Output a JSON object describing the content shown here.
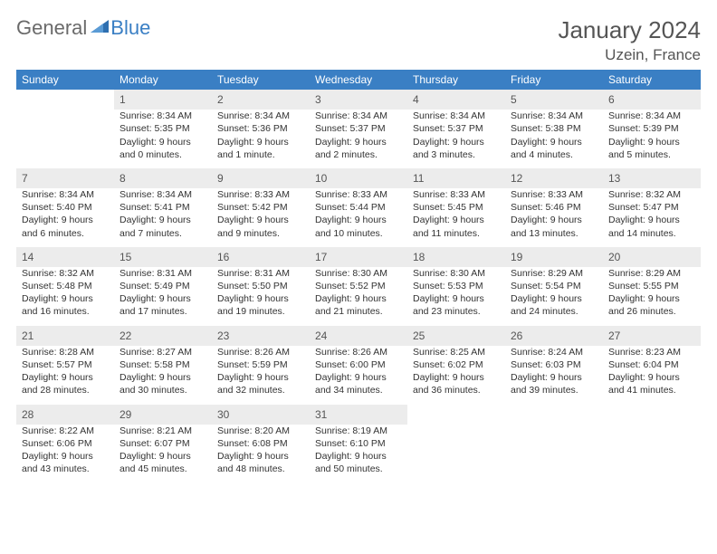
{
  "brand": {
    "part1": "General",
    "part2": "Blue"
  },
  "title": {
    "month": "January 2024",
    "location": "Uzein, France"
  },
  "colors": {
    "header_bg": "#3a7fc4",
    "header_text": "#ffffff",
    "daynum_bg": "#ececec",
    "row_border": "#3a7fc4",
    "body_text": "#333333",
    "title_text": "#555555"
  },
  "typography": {
    "month_fontsize": 26,
    "location_fontsize": 17,
    "dow_fontsize": 12,
    "daynum_fontsize": 12,
    "cell_fontsize": 10.5
  },
  "days_of_week": [
    "Sunday",
    "Monday",
    "Tuesday",
    "Wednesday",
    "Thursday",
    "Friday",
    "Saturday"
  ],
  "weeks": [
    {
      "nums": [
        "",
        "1",
        "2",
        "3",
        "4",
        "5",
        "6"
      ],
      "cells": [
        {
          "empty": true
        },
        {
          "sunrise": "Sunrise: 8:34 AM",
          "sunset": "Sunset: 5:35 PM",
          "day1": "Daylight: 9 hours",
          "day2": "and 0 minutes."
        },
        {
          "sunrise": "Sunrise: 8:34 AM",
          "sunset": "Sunset: 5:36 PM",
          "day1": "Daylight: 9 hours",
          "day2": "and 1 minute."
        },
        {
          "sunrise": "Sunrise: 8:34 AM",
          "sunset": "Sunset: 5:37 PM",
          "day1": "Daylight: 9 hours",
          "day2": "and 2 minutes."
        },
        {
          "sunrise": "Sunrise: 8:34 AM",
          "sunset": "Sunset: 5:37 PM",
          "day1": "Daylight: 9 hours",
          "day2": "and 3 minutes."
        },
        {
          "sunrise": "Sunrise: 8:34 AM",
          "sunset": "Sunset: 5:38 PM",
          "day1": "Daylight: 9 hours",
          "day2": "and 4 minutes."
        },
        {
          "sunrise": "Sunrise: 8:34 AM",
          "sunset": "Sunset: 5:39 PM",
          "day1": "Daylight: 9 hours",
          "day2": "and 5 minutes."
        }
      ]
    },
    {
      "nums": [
        "7",
        "8",
        "9",
        "10",
        "11",
        "12",
        "13"
      ],
      "cells": [
        {
          "sunrise": "Sunrise: 8:34 AM",
          "sunset": "Sunset: 5:40 PM",
          "day1": "Daylight: 9 hours",
          "day2": "and 6 minutes."
        },
        {
          "sunrise": "Sunrise: 8:34 AM",
          "sunset": "Sunset: 5:41 PM",
          "day1": "Daylight: 9 hours",
          "day2": "and 7 minutes."
        },
        {
          "sunrise": "Sunrise: 8:33 AM",
          "sunset": "Sunset: 5:42 PM",
          "day1": "Daylight: 9 hours",
          "day2": "and 9 minutes."
        },
        {
          "sunrise": "Sunrise: 8:33 AM",
          "sunset": "Sunset: 5:44 PM",
          "day1": "Daylight: 9 hours",
          "day2": "and 10 minutes."
        },
        {
          "sunrise": "Sunrise: 8:33 AM",
          "sunset": "Sunset: 5:45 PM",
          "day1": "Daylight: 9 hours",
          "day2": "and 11 minutes."
        },
        {
          "sunrise": "Sunrise: 8:33 AM",
          "sunset": "Sunset: 5:46 PM",
          "day1": "Daylight: 9 hours",
          "day2": "and 13 minutes."
        },
        {
          "sunrise": "Sunrise: 8:32 AM",
          "sunset": "Sunset: 5:47 PM",
          "day1": "Daylight: 9 hours",
          "day2": "and 14 minutes."
        }
      ]
    },
    {
      "nums": [
        "14",
        "15",
        "16",
        "17",
        "18",
        "19",
        "20"
      ],
      "cells": [
        {
          "sunrise": "Sunrise: 8:32 AM",
          "sunset": "Sunset: 5:48 PM",
          "day1": "Daylight: 9 hours",
          "day2": "and 16 minutes."
        },
        {
          "sunrise": "Sunrise: 8:31 AM",
          "sunset": "Sunset: 5:49 PM",
          "day1": "Daylight: 9 hours",
          "day2": "and 17 minutes."
        },
        {
          "sunrise": "Sunrise: 8:31 AM",
          "sunset": "Sunset: 5:50 PM",
          "day1": "Daylight: 9 hours",
          "day2": "and 19 minutes."
        },
        {
          "sunrise": "Sunrise: 8:30 AM",
          "sunset": "Sunset: 5:52 PM",
          "day1": "Daylight: 9 hours",
          "day2": "and 21 minutes."
        },
        {
          "sunrise": "Sunrise: 8:30 AM",
          "sunset": "Sunset: 5:53 PM",
          "day1": "Daylight: 9 hours",
          "day2": "and 23 minutes."
        },
        {
          "sunrise": "Sunrise: 8:29 AM",
          "sunset": "Sunset: 5:54 PM",
          "day1": "Daylight: 9 hours",
          "day2": "and 24 minutes."
        },
        {
          "sunrise": "Sunrise: 8:29 AM",
          "sunset": "Sunset: 5:55 PM",
          "day1": "Daylight: 9 hours",
          "day2": "and 26 minutes."
        }
      ]
    },
    {
      "nums": [
        "21",
        "22",
        "23",
        "24",
        "25",
        "26",
        "27"
      ],
      "cells": [
        {
          "sunrise": "Sunrise: 8:28 AM",
          "sunset": "Sunset: 5:57 PM",
          "day1": "Daylight: 9 hours",
          "day2": "and 28 minutes."
        },
        {
          "sunrise": "Sunrise: 8:27 AM",
          "sunset": "Sunset: 5:58 PM",
          "day1": "Daylight: 9 hours",
          "day2": "and 30 minutes."
        },
        {
          "sunrise": "Sunrise: 8:26 AM",
          "sunset": "Sunset: 5:59 PM",
          "day1": "Daylight: 9 hours",
          "day2": "and 32 minutes."
        },
        {
          "sunrise": "Sunrise: 8:26 AM",
          "sunset": "Sunset: 6:00 PM",
          "day1": "Daylight: 9 hours",
          "day2": "and 34 minutes."
        },
        {
          "sunrise": "Sunrise: 8:25 AM",
          "sunset": "Sunset: 6:02 PM",
          "day1": "Daylight: 9 hours",
          "day2": "and 36 minutes."
        },
        {
          "sunrise": "Sunrise: 8:24 AM",
          "sunset": "Sunset: 6:03 PM",
          "day1": "Daylight: 9 hours",
          "day2": "and 39 minutes."
        },
        {
          "sunrise": "Sunrise: 8:23 AM",
          "sunset": "Sunset: 6:04 PM",
          "day1": "Daylight: 9 hours",
          "day2": "and 41 minutes."
        }
      ]
    },
    {
      "nums": [
        "28",
        "29",
        "30",
        "31",
        "",
        "",
        ""
      ],
      "cells": [
        {
          "sunrise": "Sunrise: 8:22 AM",
          "sunset": "Sunset: 6:06 PM",
          "day1": "Daylight: 9 hours",
          "day2": "and 43 minutes."
        },
        {
          "sunrise": "Sunrise: 8:21 AM",
          "sunset": "Sunset: 6:07 PM",
          "day1": "Daylight: 9 hours",
          "day2": "and 45 minutes."
        },
        {
          "sunrise": "Sunrise: 8:20 AM",
          "sunset": "Sunset: 6:08 PM",
          "day1": "Daylight: 9 hours",
          "day2": "and 48 minutes."
        },
        {
          "sunrise": "Sunrise: 8:19 AM",
          "sunset": "Sunset: 6:10 PM",
          "day1": "Daylight: 9 hours",
          "day2": "and 50 minutes."
        },
        {
          "empty": true
        },
        {
          "empty": true
        },
        {
          "empty": true
        }
      ]
    }
  ]
}
